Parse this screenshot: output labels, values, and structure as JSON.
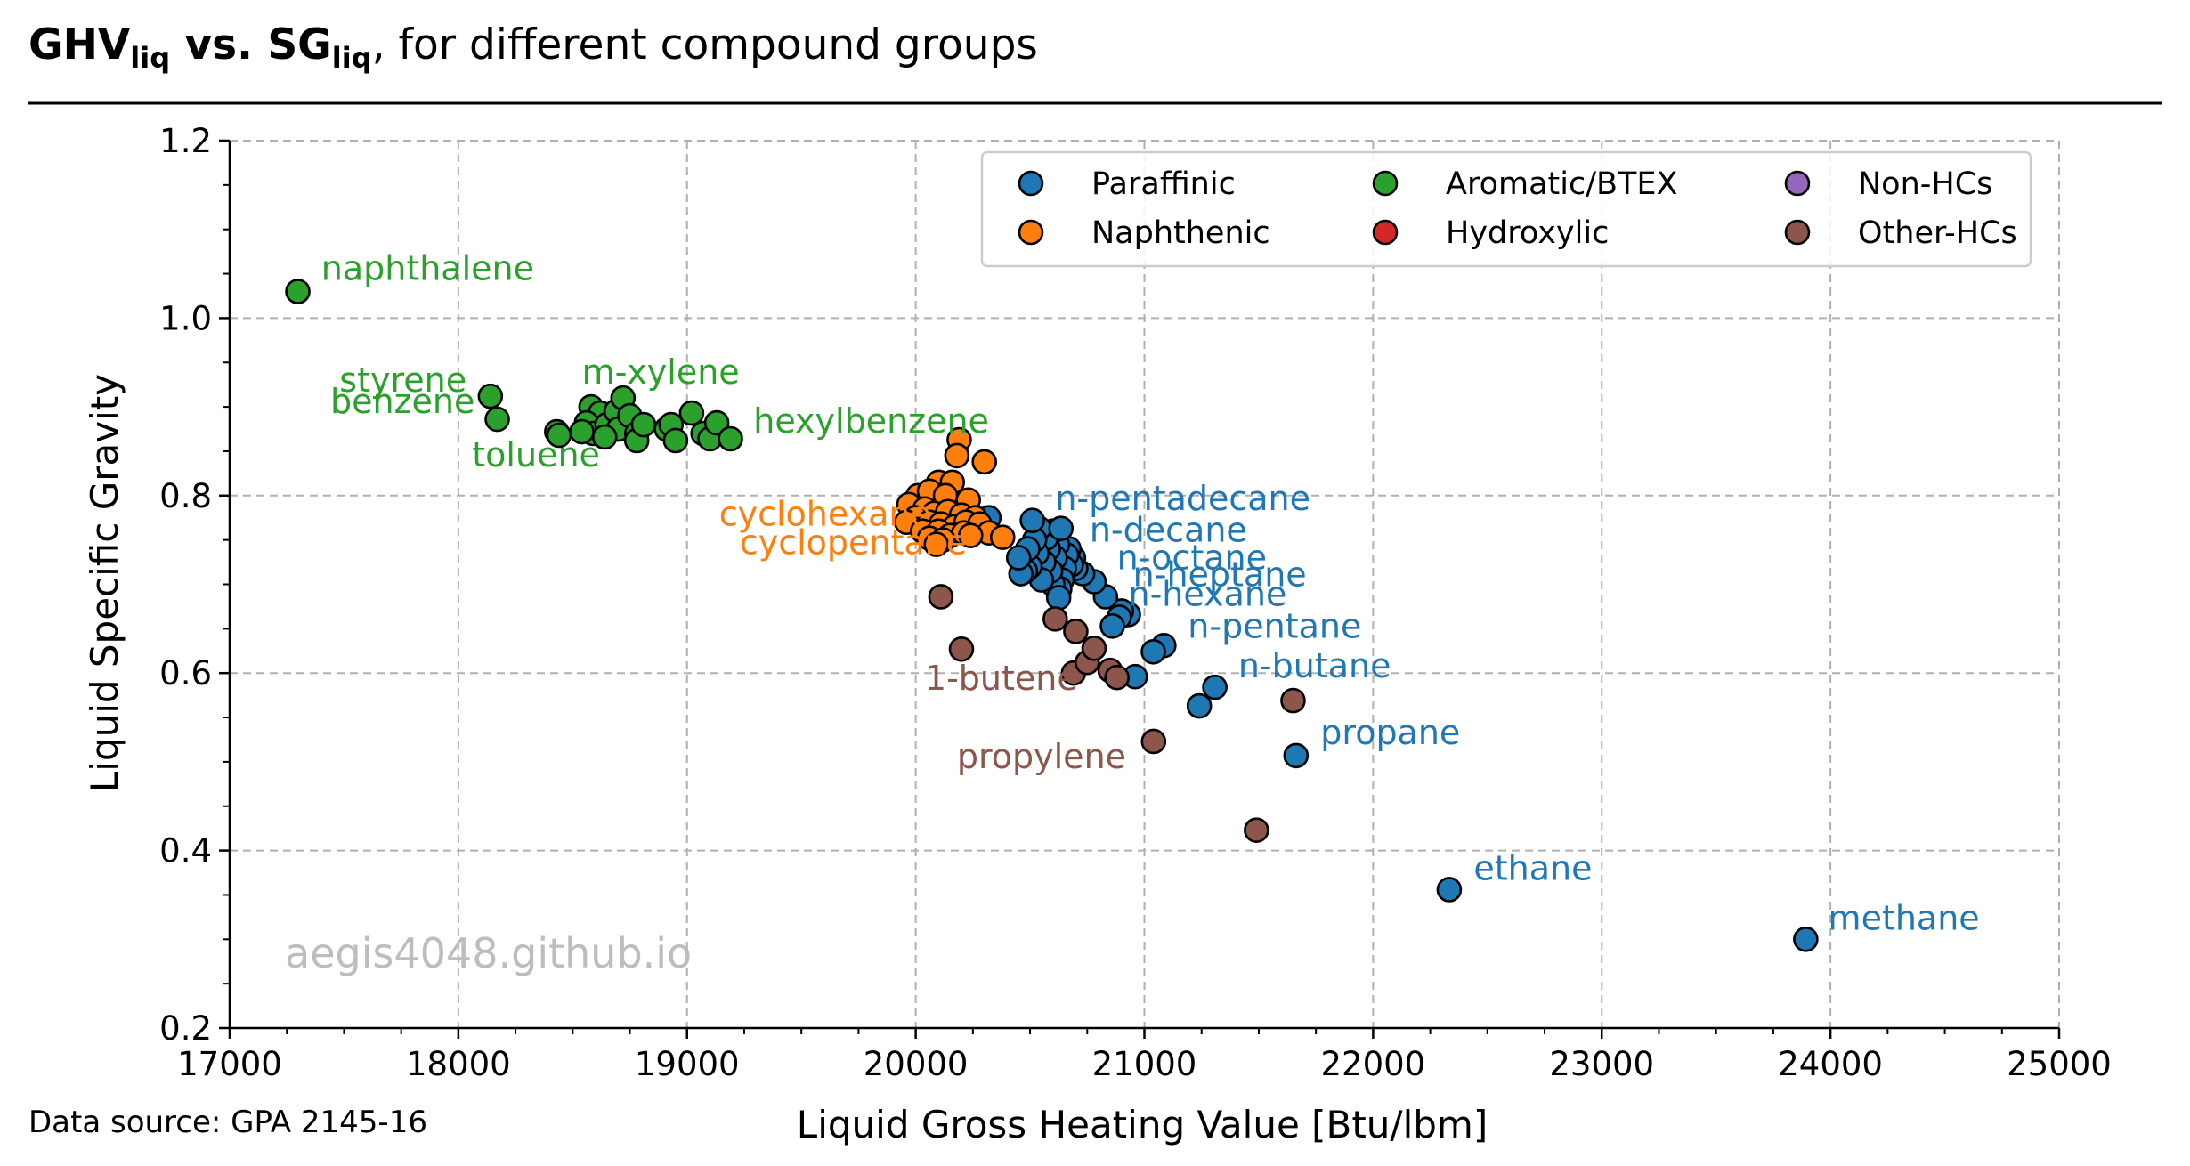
{
  "header": {
    "title_part1": "GHV",
    "title_sub1": "liq",
    "title_part2": " vs.  SG",
    "title_sub2": "liq",
    "title_rest": ", for different compound groups"
  },
  "footer": {
    "source": "Data source: GPA 2145-16",
    "watermark": "aegis4048.github.io"
  },
  "chart_data": {
    "type": "scatter",
    "xlabel": "Liquid Gross Heating Value [Btu/lbm]",
    "ylabel": "Liquid Specific Gravity",
    "xlim": [
      17000,
      25000
    ],
    "ylim": [
      0.2,
      1.2
    ],
    "xticks": [
      "17000",
      "18000",
      "19000",
      "20000",
      "21000",
      "22000",
      "23000",
      "24000",
      "25000"
    ],
    "yticks": [
      "0.2",
      "0.4",
      "0.6",
      "0.8",
      "1.0",
      "1.2"
    ],
    "grid": true,
    "legend_position": "top-right",
    "series": [
      {
        "name": "Paraffinic",
        "color": "#1f77b4",
        "points": [
          [
            23892,
            0.3
          ],
          [
            22333,
            0.356
          ],
          [
            21663,
            0.507
          ],
          [
            21308,
            0.584
          ],
          [
            21240,
            0.563
          ],
          [
            21085,
            0.631
          ],
          [
            21039,
            0.624
          ],
          [
            20960,
            0.596
          ],
          [
            20930,
            0.666
          ],
          [
            20900,
            0.67
          ],
          [
            20890,
            0.663
          ],
          [
            20860,
            0.653
          ],
          [
            20830,
            0.686
          ],
          [
            20780,
            0.703
          ],
          [
            20730,
            0.712
          ],
          [
            20700,
            0.718
          ],
          [
            20690,
            0.73
          ],
          [
            20680,
            0.722
          ],
          [
            20670,
            0.74
          ],
          [
            20660,
            0.733
          ],
          [
            20650,
            0.718
          ],
          [
            20640,
            0.705
          ],
          [
            20630,
            0.695
          ],
          [
            20620,
            0.745
          ],
          [
            20610,
            0.73
          ],
          [
            20600,
            0.76
          ],
          [
            20600,
            0.7
          ],
          [
            20590,
            0.715
          ],
          [
            20580,
            0.74
          ],
          [
            20570,
            0.752
          ],
          [
            20560,
            0.725
          ],
          [
            20550,
            0.705
          ],
          [
            20540,
            0.763
          ],
          [
            20530,
            0.735
          ],
          [
            20520,
            0.75
          ],
          [
            20510,
            0.772
          ],
          [
            20500,
            0.72
          ],
          [
            20490,
            0.74
          ],
          [
            20480,
            0.715
          ],
          [
            20460,
            0.712
          ],
          [
            20450,
            0.73
          ],
          [
            20320,
            0.775
          ],
          [
            20635,
            0.763
          ],
          [
            20625,
            0.685
          ]
        ]
      },
      {
        "name": "Naphthenic",
        "color": "#ff7f0e",
        "points": [
          [
            20190,
            0.863
          ],
          [
            20180,
            0.845
          ],
          [
            20300,
            0.838
          ],
          [
            20100,
            0.815
          ],
          [
            20160,
            0.815
          ],
          [
            20010,
            0.8
          ],
          [
            20060,
            0.805
          ],
          [
            20130,
            0.8
          ],
          [
            20230,
            0.795
          ],
          [
            19970,
            0.79
          ],
          [
            20040,
            0.785
          ],
          [
            20080,
            0.78
          ],
          [
            20140,
            0.782
          ],
          [
            20200,
            0.778
          ],
          [
            20260,
            0.775
          ],
          [
            20000,
            0.775
          ],
          [
            20060,
            0.77
          ],
          [
            20110,
            0.768
          ],
          [
            20170,
            0.765
          ],
          [
            20220,
            0.77
          ],
          [
            20280,
            0.768
          ],
          [
            19960,
            0.77
          ],
          [
            20030,
            0.76
          ],
          [
            20100,
            0.76
          ],
          [
            20150,
            0.755
          ],
          [
            20210,
            0.758
          ],
          [
            20320,
            0.758
          ],
          [
            20380,
            0.753
          ],
          [
            20060,
            0.752
          ],
          [
            20120,
            0.75
          ],
          [
            20240,
            0.755
          ],
          [
            20090,
            0.745
          ]
        ]
      },
      {
        "name": "Aromatic/BTEX",
        "color": "#2ca02c",
        "points": [
          [
            17298,
            1.03
          ],
          [
            18140,
            0.912
          ],
          [
            18170,
            0.886
          ],
          [
            18430,
            0.872
          ],
          [
            18440,
            0.868
          ],
          [
            18580,
            0.9
          ],
          [
            18620,
            0.893
          ],
          [
            18560,
            0.882
          ],
          [
            18590,
            0.87
          ],
          [
            18650,
            0.88
          ],
          [
            18690,
            0.895
          ],
          [
            18720,
            0.91
          ],
          [
            18700,
            0.875
          ],
          [
            18750,
            0.89
          ],
          [
            18780,
            0.87
          ],
          [
            18780,
            0.862
          ],
          [
            18810,
            0.88
          ],
          [
            18910,
            0.875
          ],
          [
            18930,
            0.88
          ],
          [
            18950,
            0.862
          ],
          [
            19020,
            0.893
          ],
          [
            19070,
            0.87
          ],
          [
            19100,
            0.864
          ],
          [
            19130,
            0.882
          ],
          [
            19190,
            0.864
          ],
          [
            18640,
            0.866
          ],
          [
            18540,
            0.872
          ]
        ]
      },
      {
        "name": "Hydroxylic",
        "color": "#d62728",
        "points": []
      },
      {
        "name": "Non-HCs",
        "color": "#9467bd",
        "points": []
      },
      {
        "name": "Other-HCs",
        "color": "#8c564b",
        "points": [
          [
            20110,
            0.686
          ],
          [
            20200,
            0.627
          ],
          [
            20610,
            0.661
          ],
          [
            20700,
            0.647
          ],
          [
            20690,
            0.6
          ],
          [
            20750,
            0.612
          ],
          [
            20780,
            0.628
          ],
          [
            20850,
            0.603
          ],
          [
            20880,
            0.595
          ],
          [
            21040,
            0.523
          ],
          [
            21490,
            0.423
          ],
          [
            21650,
            0.569
          ]
        ]
      }
    ],
    "annotations": [
      {
        "text": "naphthalene",
        "x": 17400,
        "y": 1.043,
        "color": "#2ca02c"
      },
      {
        "text": "styrene",
        "x": 17480,
        "y": 0.917,
        "color": "#2ca02c"
      },
      {
        "text": "benzene",
        "x": 17440,
        "y": 0.893,
        "color": "#2ca02c"
      },
      {
        "text": "toluene",
        "x": 18060,
        "y": 0.833,
        "color": "#2ca02c"
      },
      {
        "text": "m-xylene",
        "x": 18540,
        "y": 0.926,
        "color": "#2ca02c"
      },
      {
        "text": "hexylbenzene",
        "x": 19290,
        "y": 0.871,
        "color": "#2ca02c"
      },
      {
        "text": "cyclohexane",
        "x": 19140,
        "y": 0.766,
        "color": "#ff7f0e"
      },
      {
        "text": "cyclopentane",
        "x": 19230,
        "y": 0.734,
        "color": "#ff7f0e"
      },
      {
        "text": "n-pentadecane",
        "x": 20610,
        "y": 0.784,
        "color": "#1f77b4"
      },
      {
        "text": "n-decane",
        "x": 20760,
        "y": 0.748,
        "color": "#1f77b4"
      },
      {
        "text": "n-octane",
        "x": 20880,
        "y": 0.717,
        "color": "#1f77b4"
      },
      {
        "text": "n-heptane",
        "x": 20950,
        "y": 0.698,
        "color": "#1f77b4"
      },
      {
        "text": "n-hexane",
        "x": 20930,
        "y": 0.676,
        "color": "#1f77b4"
      },
      {
        "text": "n-pentane",
        "x": 21190,
        "y": 0.64,
        "color": "#1f77b4"
      },
      {
        "text": "n-butane",
        "x": 21410,
        "y": 0.595,
        "color": "#1f77b4"
      },
      {
        "text": "propane",
        "x": 21770,
        "y": 0.52,
        "color": "#1f77b4"
      },
      {
        "text": "ethane",
        "x": 22440,
        "y": 0.367,
        "color": "#1f77b4"
      },
      {
        "text": "methane",
        "x": 23990,
        "y": 0.311,
        "color": "#1f77b4"
      },
      {
        "text": "1-butene",
        "x": 20040,
        "y": 0.581,
        "color": "#8c564b"
      },
      {
        "text": "propylene",
        "x": 20180,
        "y": 0.493,
        "color": "#8c564b"
      }
    ]
  }
}
